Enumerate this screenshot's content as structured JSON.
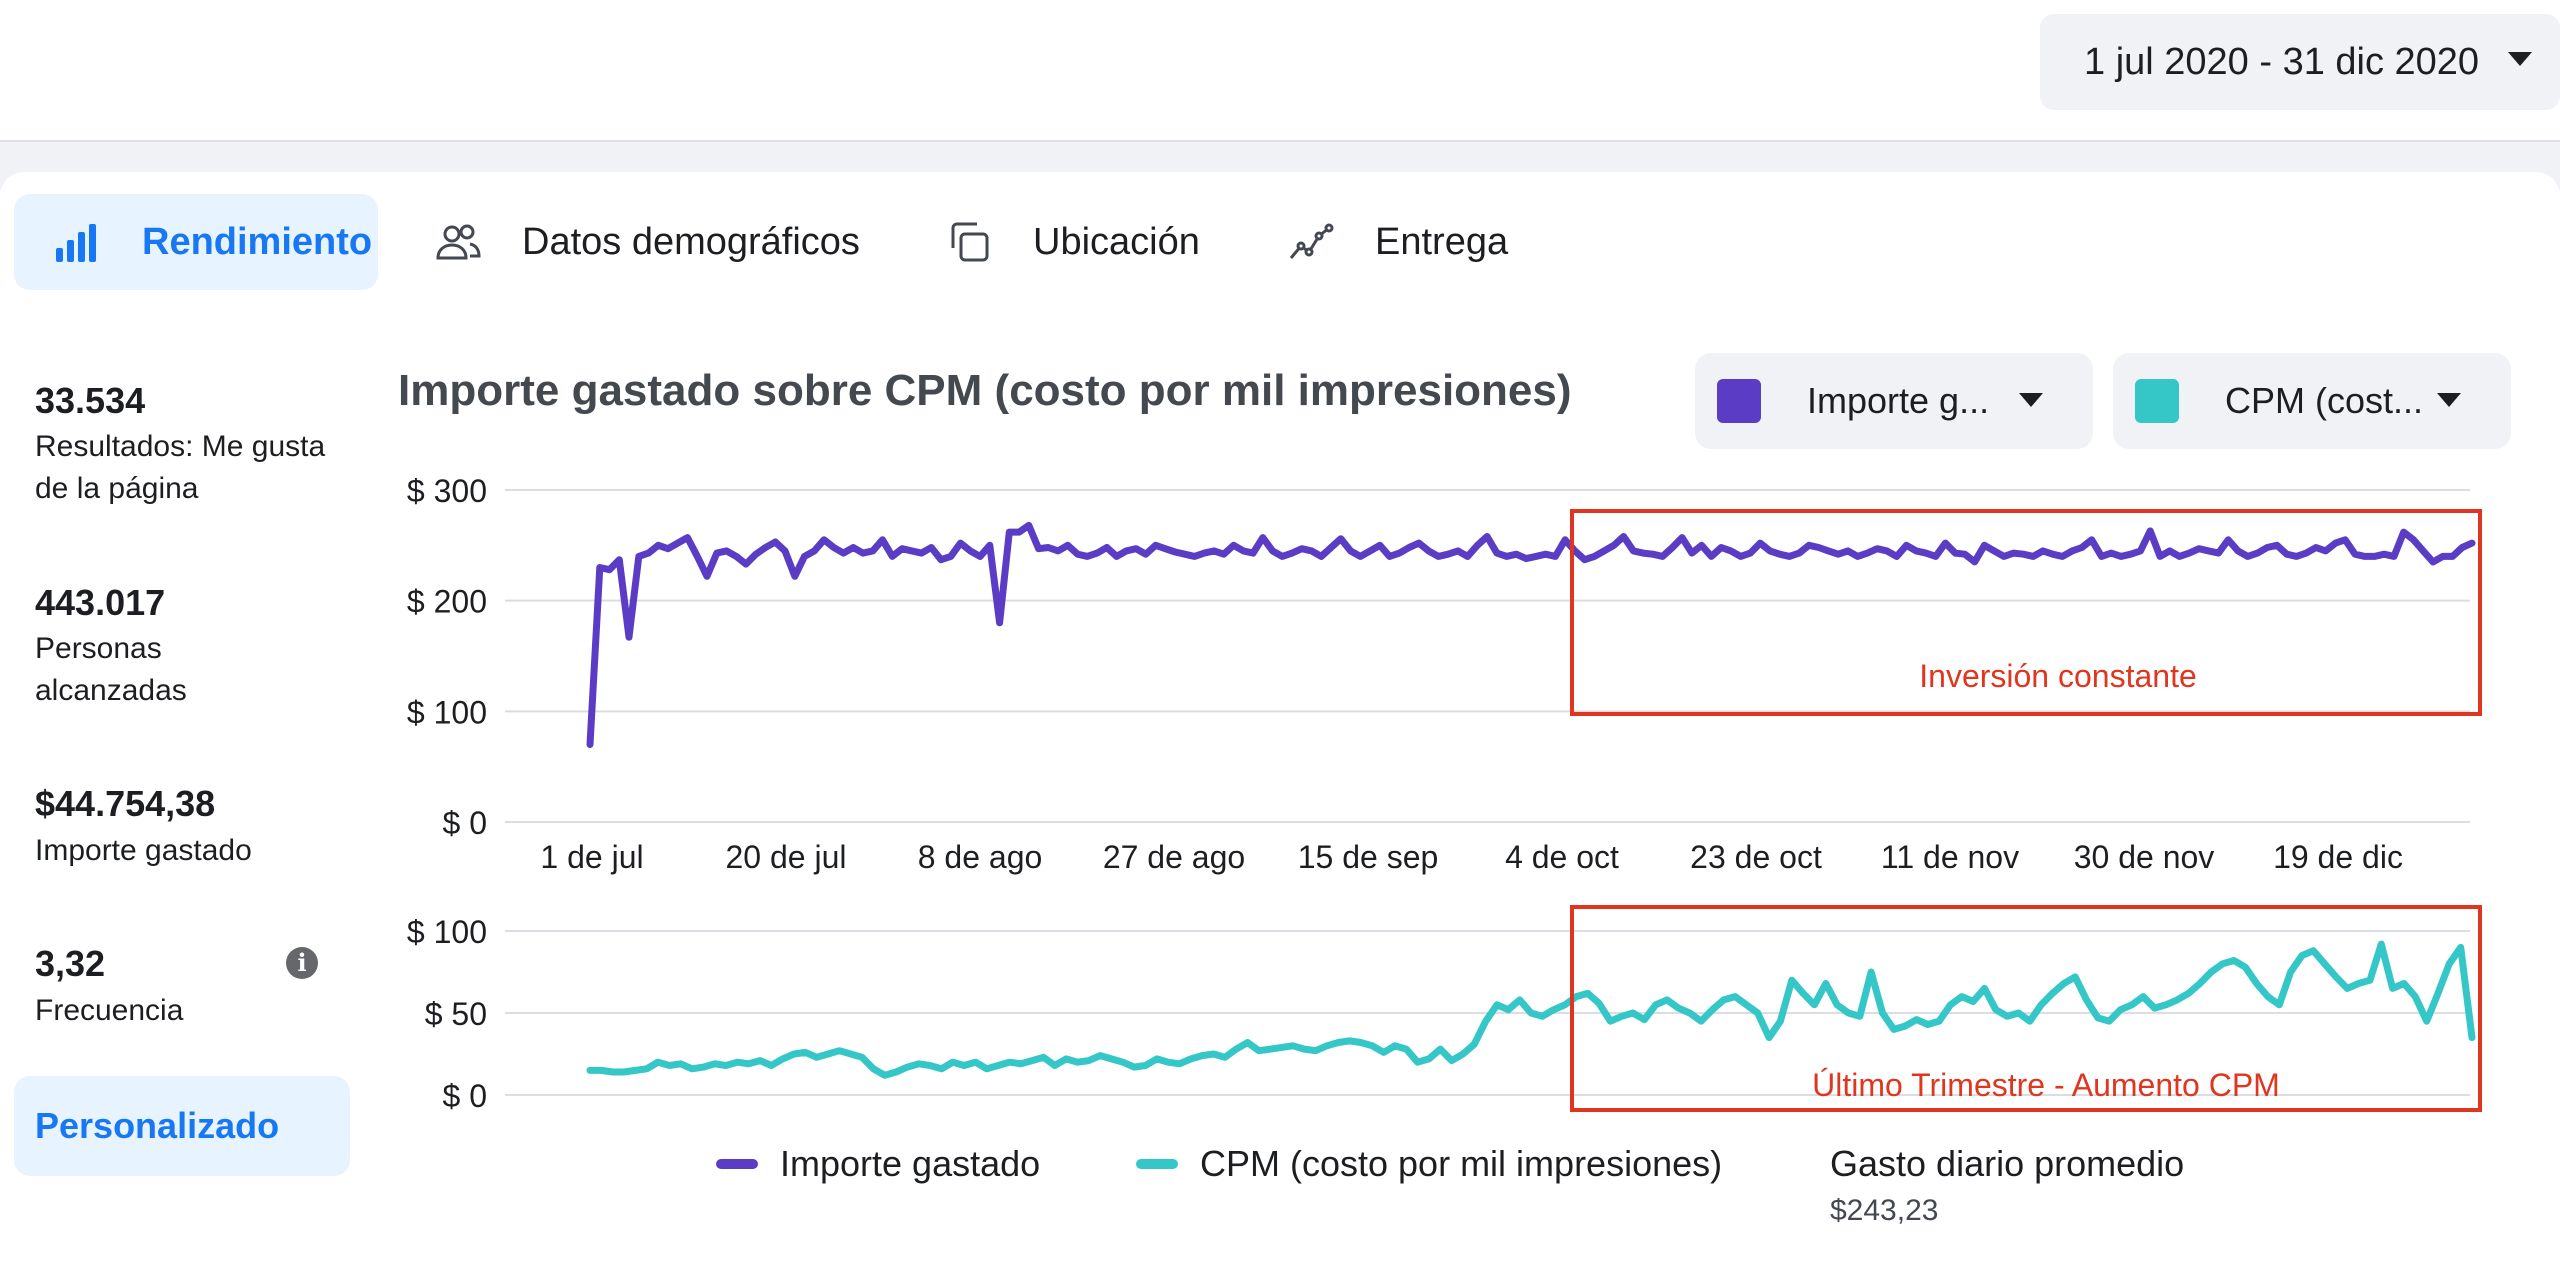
{
  "date_range": "1 jul 2020 - 31 dic 2020",
  "tabs": [
    {
      "label": "Rendimiento",
      "icon": "bar-chart-icon",
      "active": true
    },
    {
      "label": "Datos demográficos",
      "icon": "people-icon",
      "active": false
    },
    {
      "label": "Ubicación",
      "icon": "placement-icon",
      "active": false
    },
    {
      "label": "Entrega",
      "icon": "delivery-icon",
      "active": false
    }
  ],
  "metrics": [
    {
      "value": "33.534",
      "label": "Resultados: Me gusta de la página"
    },
    {
      "value": "443.017",
      "label": "Personas alcanzadas"
    },
    {
      "value": "$44.754,38",
      "label": "Importe gastado"
    },
    {
      "value": "3,32",
      "label": "Frecuencia"
    }
  ],
  "custom_button": "Personalizado",
  "chart": {
    "title": "Importe gastado sobre CPM (costo por mil impresiones)",
    "selector_1": "Importe g...",
    "selector_2": "CPM (cost...",
    "colors": {
      "spend": "#5b3cc4",
      "cpm": "#35c7c7",
      "annotation": "#e0351f"
    },
    "annotation_1": "Inversión constante",
    "annotation_2": "Último Trimestre - Aumento CPM",
    "legend_spend": "Importe gastado",
    "legend_cpm": "CPM (costo por mil impresiones)",
    "avg_label": "Gasto diario promedio",
    "avg_value": "$243,23"
  },
  "chart_data": {
    "type": "line",
    "x_ticks": [
      "1 de jul",
      "20 de jul",
      "8 de ago",
      "27 de ago",
      "15 de sep",
      "4 de oct",
      "23 de oct",
      "11 de nov",
      "30 de nov",
      "19 de dic"
    ],
    "top_panel": {
      "y_ticks": [
        "$ 300",
        "$ 200",
        "$ 100",
        "$ 0"
      ],
      "ylim": [
        0,
        300
      ],
      "series": [
        {
          "name": "Importe gastado",
          "values": [
            70,
            230,
            228,
            237,
            167,
            240,
            243,
            250,
            247,
            252,
            257,
            240,
            222,
            243,
            245,
            240,
            233,
            242,
            248,
            253,
            245,
            222,
            240,
            245,
            255,
            248,
            243,
            248,
            243,
            245,
            255,
            240,
            247,
            245,
            243,
            248,
            237,
            240,
            252,
            245,
            240,
            250,
            180,
            262,
            262,
            268,
            247,
            248,
            245,
            250,
            242,
            240,
            243,
            248,
            240,
            245,
            247,
            242,
            250,
            247,
            244,
            242,
            240,
            243,
            245,
            242,
            250,
            245,
            243,
            257,
            245,
            240,
            243,
            247,
            245,
            240,
            248,
            256,
            245,
            240,
            245,
            250,
            240,
            243,
            248,
            252,
            245,
            240,
            242,
            245,
            240,
            250,
            258,
            243,
            240,
            242,
            238,
            240,
            242,
            240,
            255,
            245,
            237,
            240,
            245,
            250,
            258,
            245,
            243,
            242,
            240,
            248,
            257,
            243,
            250,
            240,
            248,
            245,
            240,
            243,
            252,
            245,
            242,
            240,
            243,
            250,
            248,
            245,
            242,
            245,
            240,
            243,
            247,
            245,
            240,
            250,
            245,
            243,
            240,
            252,
            243,
            242,
            235,
            250,
            245,
            240,
            243,
            242,
            240,
            245,
            242,
            240,
            245,
            248,
            255,
            240,
            243,
            240,
            242,
            245,
            263,
            240,
            245,
            240,
            243,
            247,
            245,
            243,
            255,
            245,
            240,
            243,
            248,
            250,
            242,
            240,
            243,
            248,
            245,
            252,
            255,
            242,
            240,
            240,
            242,
            240,
            262,
            255,
            245,
            235,
            240,
            240,
            248,
            252
          ]
        }
      ]
    },
    "bottom_panel": {
      "y_ticks": [
        "$ 100",
        "$ 50",
        "$ 0"
      ],
      "ylim": [
        0,
        100
      ],
      "series": [
        {
          "name": "CPM (costo por mil impresiones)",
          "values": [
            15,
            15,
            14,
            14,
            15,
            16,
            20,
            18,
            19,
            16,
            17,
            19,
            18,
            20,
            19,
            21,
            18,
            22,
            25,
            26,
            23,
            25,
            27,
            25,
            23,
            16,
            12,
            14,
            17,
            19,
            18,
            16,
            20,
            18,
            20,
            16,
            18,
            20,
            19,
            21,
            23,
            18,
            22,
            20,
            21,
            24,
            22,
            20,
            17,
            18,
            22,
            20,
            19,
            22,
            24,
            25,
            23,
            28,
            32,
            27,
            28,
            29,
            30,
            28,
            27,
            30,
            32,
            33,
            32,
            30,
            26,
            30,
            28,
            20,
            22,
            28,
            21,
            25,
            31,
            45,
            55,
            52,
            58,
            50,
            48,
            52,
            55,
            60,
            62,
            56,
            45,
            48,
            50,
            46,
            55,
            58,
            53,
            50,
            45,
            52,
            58,
            60,
            55,
            50,
            35,
            45,
            70,
            62,
            55,
            68,
            55,
            50,
            48,
            75,
            50,
            40,
            42,
            46,
            43,
            45,
            55,
            60,
            57,
            65,
            52,
            48,
            50,
            45,
            55,
            62,
            68,
            72,
            58,
            47,
            45,
            52,
            55,
            60,
            53,
            55,
            58,
            62,
            68,
            75,
            80,
            82,
            78,
            68,
            60,
            55,
            75,
            85,
            88,
            80,
            72,
            65,
            68,
            70,
            92,
            65,
            68,
            60,
            45,
            62,
            80,
            90,
            35
          ]
        }
      ]
    }
  }
}
